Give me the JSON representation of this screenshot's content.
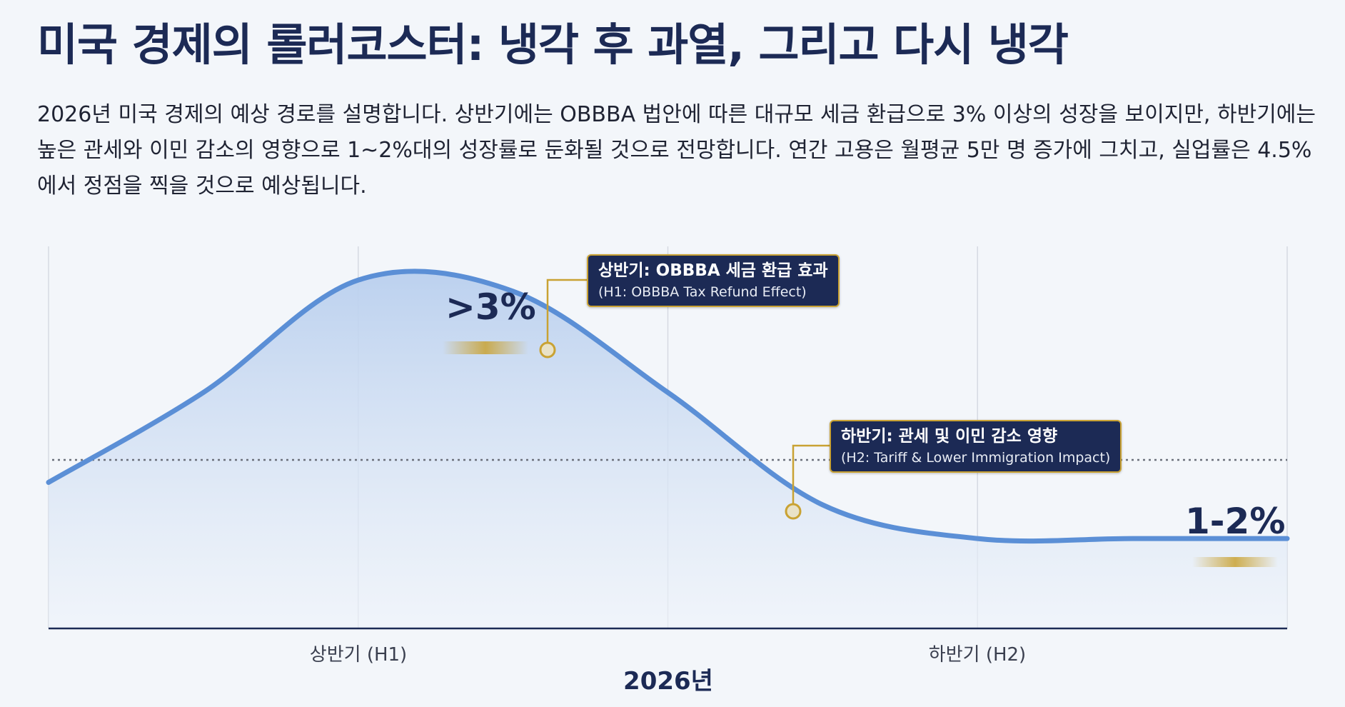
{
  "title": "미국 경제의 롤러코스터: 냉각 후 과열, 그리고 다시 냉각",
  "description": "2026년 미국 경제의 예상 경로를 설명합니다. 상반기에는 OBBBA 법안에 따른 대규모 세금 환급으로 3% 이상의 성장을 보이지만, 하반기에는 높은 관세와 이민 감소의 영향으로 1~2%대의 성장률로 둔화될 것으로 전망합니다. 연간 고용은 월평균 5만 명 증가에 그치고, 실업률은 4.5%에서 정점을 찍을 것으로 예상됩니다.",
  "colors": {
    "line": "#5b8fd6",
    "fill": "#c9daf2",
    "navy": "#1c2a55",
    "gold": "#c9a233"
  },
  "chart_data": {
    "type": "area",
    "xlabel": "2026년",
    "categories": [
      "상반기 (H1)",
      "하반기 (H2)"
    ],
    "series": [
      {
        "x": [
          0,
          0.25,
          0.5,
          0.75,
          1.0,
          1.25,
          1.5,
          1.75,
          2.0
        ],
        "y": [
          1.8,
          2.6,
          3.6,
          3.5,
          2.6,
          1.6,
          1.3,
          1.3,
          1.3
        ]
      }
    ],
    "reference_line": 2.0,
    "xlim": [
      0,
      2
    ],
    "ylim": [
      0.5,
      3.9
    ],
    "grid": true,
    "annotations": [
      {
        "text": ">3%"
      },
      {
        "text": "1-2%"
      }
    ],
    "callouts": [
      {
        "label_ko": "상반기: OBBBA 세금 환급 효과",
        "label_en": "(H1: OBBBA Tax Refund Effect)"
      },
      {
        "label_ko": "하반기: 관세 및 이민 감소 영향",
        "label_en": "(H2: Tariff & Lower Immigration Impact)"
      }
    ]
  }
}
